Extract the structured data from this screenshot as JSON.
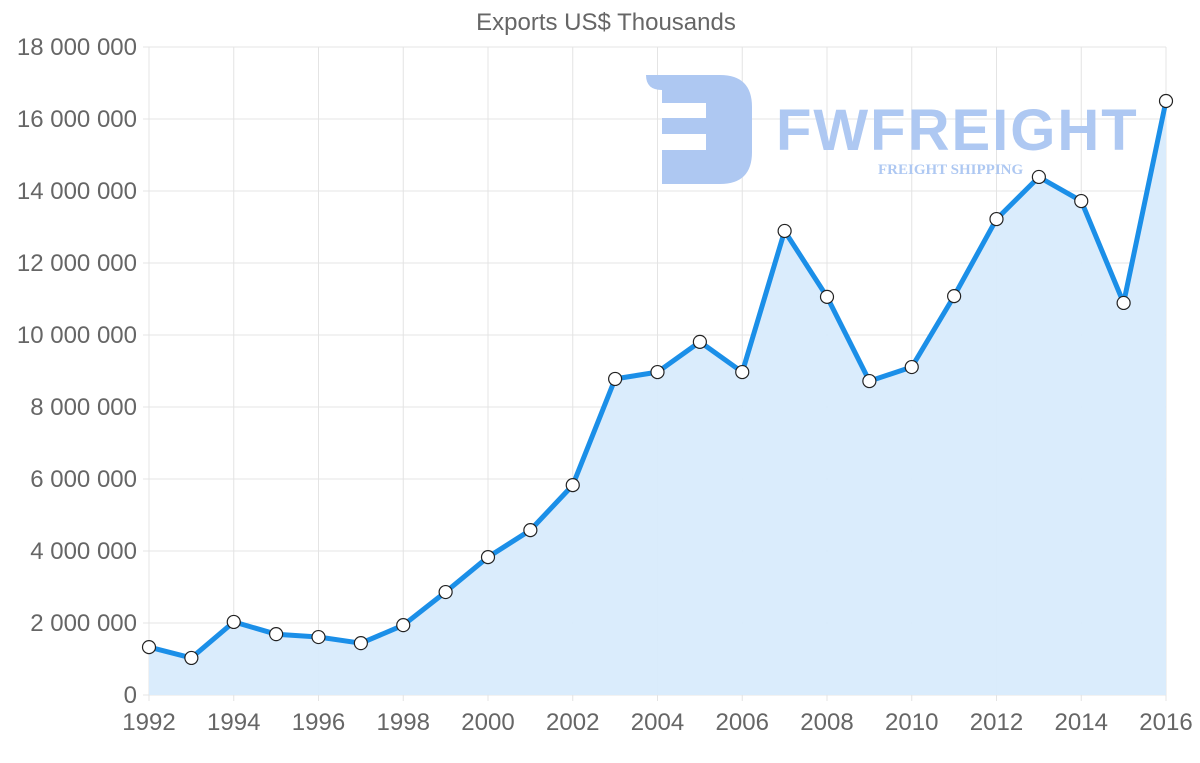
{
  "chart_data": {
    "type": "area",
    "title": "Exports US$ Thousands",
    "xlabel": "",
    "ylabel": "",
    "ylim": [
      0,
      18000000
    ],
    "y_ticks": [
      0,
      2000000,
      4000000,
      6000000,
      8000000,
      10000000,
      12000000,
      14000000,
      16000000,
      18000000
    ],
    "y_tick_labels": [
      "0",
      "2 000 000",
      "4 000 000",
      "6 000 000",
      "8 000 000",
      "10 000 000",
      "12 000 000",
      "14 000 000",
      "16 000 000",
      "18 000 000"
    ],
    "x_tick_labels": [
      "1992",
      "1994",
      "1996",
      "1998",
      "2000",
      "2002",
      "2004",
      "2006",
      "2008",
      "2010",
      "2012",
      "2014",
      "2016"
    ],
    "grid": true,
    "legend": "none",
    "categories": [
      1992,
      1993,
      1994,
      1995,
      1996,
      1997,
      1998,
      1999,
      2000,
      2001,
      2002,
      2003,
      2004,
      2005,
      2006,
      2007,
      2008,
      2009,
      2010,
      2011,
      2012,
      2013,
      2014,
      2015,
      2016
    ],
    "series": [
      {
        "name": "Exports US$ Thousands",
        "values": [
          1330000,
          1030000,
          2030000,
          1690000,
          1610000,
          1440000,
          1940000,
          2860000,
          3830000,
          4580000,
          5830000,
          8780000,
          8970000,
          9810000,
          8970000,
          12890000,
          11060000,
          8720000,
          9110000,
          11080000,
          13220000,
          14390000,
          13720000,
          10890000,
          16500000
        ]
      }
    ]
  },
  "colors": {
    "line": "#1b8fe8",
    "fill": "#d8ebfc",
    "point_fill": "#ffffff",
    "point_stroke": "#222222"
  },
  "watermark": {
    "brand": "FWFREIGHT",
    "tagline": "FREIGHT SHIPPING"
  }
}
